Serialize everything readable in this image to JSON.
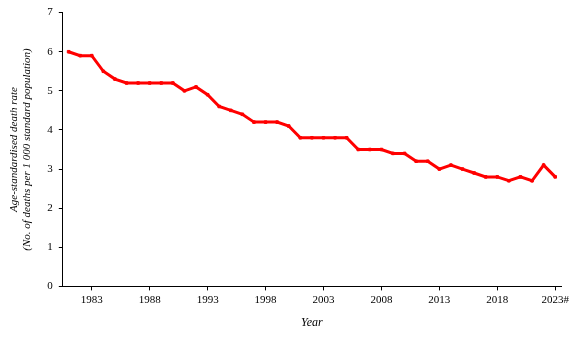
{
  "chart_data": {
    "type": "line",
    "x_label": "Year",
    "y_label": [
      "Age-standardised death rate",
      "(No. of deaths per 1 000 standard population)"
    ],
    "categories": [
      null,
      null,
      "1983",
      null,
      null,
      null,
      null,
      "1988",
      null,
      null,
      null,
      null,
      "1993",
      null,
      null,
      null,
      null,
      "1998",
      null,
      null,
      null,
      null,
      "2003",
      null,
      null,
      null,
      null,
      "2008",
      null,
      null,
      null,
      null,
      "2013",
      null,
      null,
      null,
      null,
      "2018",
      null,
      null,
      null,
      null,
      "2023#"
    ],
    "values": [
      6.0,
      5.9,
      5.9,
      5.5,
      5.3,
      5.2,
      5.2,
      5.2,
      5.2,
      5.2,
      5.0,
      5.1,
      4.9,
      4.6,
      4.5,
      4.4,
      4.2,
      4.2,
      4.2,
      4.1,
      3.8,
      3.8,
      3.8,
      3.8,
      3.8,
      3.5,
      3.5,
      3.5,
      3.4,
      3.4,
      3.2,
      3.2,
      3.0,
      3.1,
      3.0,
      2.9,
      2.8,
      2.8,
      2.7,
      2.8,
      2.7,
      3.1,
      2.8
    ],
    "color": "#ff0000",
    "marker": "square",
    "ylim": [
      0,
      7
    ],
    "yticks": [
      0,
      1,
      2,
      3,
      4,
      5,
      6,
      7
    ],
    "grid": false
  }
}
